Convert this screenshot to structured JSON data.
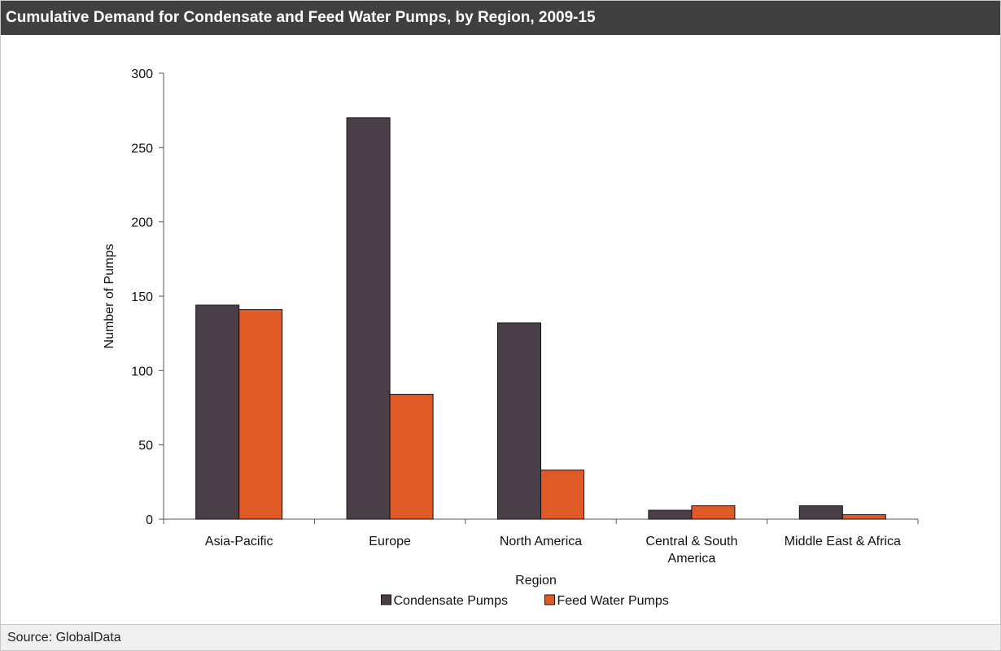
{
  "header": {
    "title": "Cumulative Demand for Condensate and Feed Water Pumps, by Region, 2009-15"
  },
  "footer": {
    "source": "Source: GlobalData"
  },
  "colors": {
    "title_bg": "#404040",
    "condensate": "#4a3f48",
    "feed_water": "#e05a28"
  },
  "chart_data": {
    "type": "bar",
    "title": "",
    "xlabel": "Region",
    "ylabel": "Number of Pumps",
    "ylim": [
      0,
      300
    ],
    "yticks": [
      0,
      50,
      100,
      150,
      200,
      250,
      300
    ],
    "categories": [
      [
        "Asia-Pacific"
      ],
      [
        "Europe"
      ],
      [
        "North America"
      ],
      [
        "Central & South",
        "America"
      ],
      [
        "Middle East & Africa"
      ]
    ],
    "series": [
      {
        "name": "Condensate Pumps",
        "color": "#4a3f48",
        "values": [
          144,
          270,
          132,
          6,
          9
        ]
      },
      {
        "name": "Feed Water Pumps",
        "color": "#e05a28",
        "values": [
          141,
          84,
          33,
          9,
          3
        ]
      }
    ],
    "legend": "bottom",
    "grid": false
  }
}
